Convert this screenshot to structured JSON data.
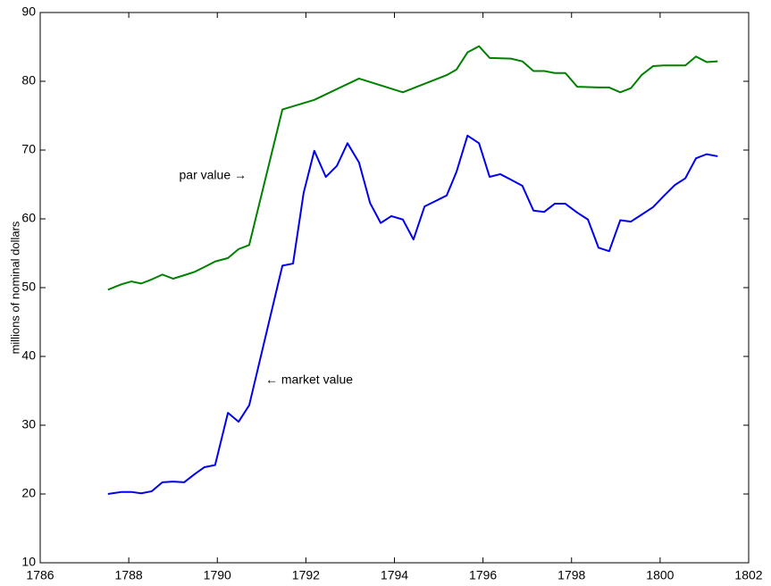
{
  "chart_data": {
    "type": "line",
    "ylabel": "millions of nominal dollars",
    "annotations": [
      "par value →",
      "← market value"
    ],
    "xlim": [
      1786,
      1802
    ],
    "xticks": [
      1786,
      1788,
      1790,
      1792,
      1794,
      1796,
      1798,
      1800,
      1802
    ],
    "ylim": [
      10,
      90
    ],
    "yticks": [
      10,
      20,
      30,
      40,
      50,
      60,
      70,
      80,
      90
    ],
    "grid": false,
    "series": [
      {
        "name": "market value",
        "color": "#0000ee",
        "x": [
          1787.53,
          1787.84,
          1788.06,
          1788.28,
          1788.52,
          1788.76,
          1789.0,
          1789.25,
          1789.49,
          1789.71,
          1789.95,
          1790.24,
          1790.48,
          1790.72,
          1791.47,
          1791.71,
          1791.95,
          1792.19,
          1792.45,
          1792.7,
          1792.94,
          1793.2,
          1793.45,
          1793.69,
          1793.93,
          1794.19,
          1794.43,
          1794.68,
          1794.93,
          1795.18,
          1795.4,
          1795.65,
          1795.91,
          1796.15,
          1796.39,
          1796.63,
          1796.89,
          1797.14,
          1797.38,
          1797.62,
          1797.86,
          1798.13,
          1798.37,
          1798.61,
          1798.85,
          1799.1,
          1799.34,
          1799.58,
          1799.84,
          1800.08,
          1800.33,
          1800.57,
          1800.81,
          1801.05,
          1801.3
        ],
        "values": [
          20.0,
          20.3,
          20.3,
          20.1,
          20.4,
          21.7,
          21.8,
          21.7,
          22.9,
          23.9,
          24.2,
          31.8,
          30.5,
          32.9,
          53.2,
          53.5,
          63.8,
          69.9,
          66.1,
          67.7,
          71.0,
          68.2,
          62.3,
          59.4,
          60.4,
          59.9,
          57.0,
          61.8,
          62.6,
          63.4,
          66.8,
          72.1,
          71.0,
          66.1,
          66.5,
          65.7,
          64.8,
          61.2,
          61.0,
          62.2,
          62.2,
          60.9,
          59.9,
          55.8,
          55.3,
          59.8,
          59.6,
          60.6,
          61.7,
          63.3,
          64.9,
          65.9,
          68.8,
          69.4,
          69.1
        ]
      },
      {
        "name": "par value",
        "color": "#008000",
        "x": [
          1787.53,
          1787.84,
          1788.06,
          1788.28,
          1788.52,
          1788.76,
          1789.0,
          1789.25,
          1789.49,
          1789.71,
          1789.95,
          1790.24,
          1790.48,
          1790.72,
          1791.47,
          1792.19,
          1793.2,
          1794.19,
          1795.18,
          1795.4,
          1795.65,
          1795.91,
          1796.15,
          1796.63,
          1796.89,
          1797.14,
          1797.38,
          1797.62,
          1797.86,
          1798.13,
          1798.61,
          1798.85,
          1799.1,
          1799.34,
          1799.58,
          1799.84,
          1800.08,
          1800.33,
          1800.57,
          1800.81,
          1801.05,
          1801.3
        ],
        "values": [
          49.7,
          50.5,
          50.9,
          50.6,
          51.2,
          51.9,
          51.3,
          51.8,
          52.3,
          53.0,
          53.8,
          54.3,
          55.6,
          56.2,
          75.9,
          77.3,
          80.4,
          78.4,
          80.9,
          81.7,
          84.2,
          85.1,
          83.4,
          83.3,
          82.9,
          81.5,
          81.5,
          81.2,
          81.2,
          79.2,
          79.1,
          79.1,
          78.4,
          79.0,
          80.9,
          82.2,
          82.3,
          82.3,
          82.3,
          83.6,
          82.8,
          82.9
        ]
      }
    ]
  }
}
